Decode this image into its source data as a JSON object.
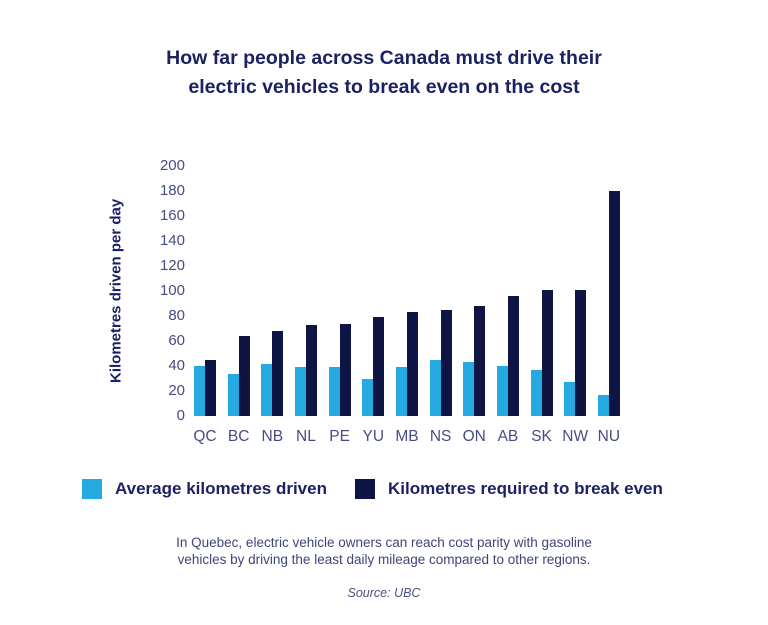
{
  "title": {
    "line1": "How far people across Canada must drive their",
    "line2": "electric vehicles to break even on the cost"
  },
  "chart_data": {
    "type": "bar",
    "categories": [
      "QC",
      "BC",
      "NB",
      "NL",
      "PE",
      "YU",
      "MB",
      "NS",
      "ON",
      "AB",
      "SK",
      "NW",
      "NU"
    ],
    "series": [
      {
        "name": "Average kilometres driven",
        "color": "#24a9e1",
        "values": [
          40,
          34,
          42,
          39,
          39,
          30,
          39,
          45,
          43,
          40,
          37,
          27,
          17
        ]
      },
      {
        "name": "Kilometres required to break even",
        "color": "#0e1443",
        "values": [
          45,
          64,
          68,
          73,
          74,
          79,
          83,
          85,
          88,
          96,
          101,
          101,
          180
        ]
      }
    ],
    "title": "How far people across Canada must drive their electric vehicles to break even on the cost",
    "xlabel": "",
    "ylabel": "Kilometres driven per day",
    "ylim": [
      0,
      200
    ],
    "yticks": [
      0,
      20,
      40,
      60,
      80,
      100,
      120,
      140,
      160,
      180,
      200
    ],
    "grid": false,
    "legend_position": "bottom"
  },
  "legend": {
    "items": [
      {
        "label": "Average kilometres driven",
        "color": "#24a9e1"
      },
      {
        "label": "Kilometres required to break even",
        "color": "#0e1443"
      }
    ]
  },
  "footnote": {
    "line1": "In Quebec, electric vehicle owners can reach cost parity with gasoline",
    "line2": "vehicles by driving the least daily mileage compared to other regions."
  },
  "source": "Source: UBC",
  "colors": {
    "light_blue": "#24a9e1",
    "dark_navy": "#0e1443",
    "heading_navy": "#1b2264",
    "tick_navy": "#474c82",
    "background": "#ffffff"
  }
}
